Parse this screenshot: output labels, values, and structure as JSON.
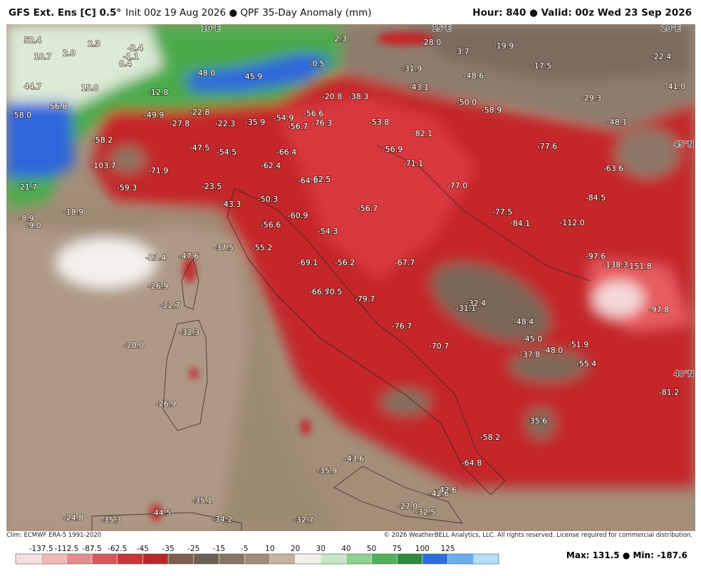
{
  "header": {
    "model": "GFS Ext.  Ens [C] 0.5°",
    "init": "Init 00z 19 Aug 2026 ● QPF 35-Day Anomaly (mm)",
    "valid": "Hour: 840 ● Valid: 00z Wed 23 Sep 2026"
  },
  "footer": {
    "climo": "Clim: ECMWF ERA-5 1991-2020",
    "copyright": "© 2026 WeatherBELL Analytics, LLC. All rights reserved. License required for commercial distribution."
  },
  "map": {
    "grid_labels": [
      "10°E",
      "15°E",
      "20°E",
      "45°N",
      "40°N"
    ],
    "labels": [
      "52.4",
      "18.7",
      "2.0",
      "2.3",
      "-2.4",
      "-1.1",
      "0.4",
      "48.0",
      "-0.5",
      "45.9",
      "2.3",
      "-28.0",
      "3.7",
      "-19.9",
      "-22.4",
      "44.7",
      "15.8",
      "56.8",
      "58.0",
      "-12.8",
      "-49.9",
      "-22.8",
      "-27.8",
      "-22.3",
      "-35.9",
      "-54.9",
      "-56.6",
      "-56.7",
      "-76.3",
      "-20.8",
      "-38.3",
      "-31.9",
      "-43.1",
      "-48.6",
      "-17.5",
      "-29.3",
      "-41.0",
      "-50.0",
      "-58.9",
      "-53.8",
      "-82.1",
      "-48.1",
      "-58.2",
      "-47.5",
      "-54.5",
      "-66.4",
      "-62.4",
      "-56.9",
      "-77.6",
      "-103.7",
      "-71.9",
      "-71.1",
      "-63.6",
      "-64.6",
      "-62.5",
      "-77.0",
      "21.7",
      "-59.3",
      "-23.5",
      "-43.3",
      "-50.3",
      "-84.5",
      "-56.7",
      "-8.9",
      "-18.9",
      "-9.0",
      "-56.6",
      "-60.9",
      "-77.5",
      "-84.1",
      "-112.0",
      "-54.3",
      "-37.5",
      "-55.2",
      "-47.6",
      "-23.4",
      "-97.6",
      "-138.3",
      "-151.8",
      "-69.1",
      "-56.2",
      "-67.7",
      "-26.9",
      "-66.5",
      "70.5",
      "-79.7",
      "-32.4",
      "-31.1",
      "-97.8",
      "-22.7",
      "-48.4",
      "-76.7",
      "-32.3",
      "-45.0",
      "-51.9",
      "-20.0",
      "-70.7",
      "-37.8",
      "-48.0",
      "-55.4",
      "-81.2",
      "-26.9",
      "-35.6",
      "-58.2",
      "-43.6",
      "-64.8",
      "-35.9",
      "-43.6",
      "-42.6",
      "-35.1",
      "-27.0",
      "-32.5",
      "-24.8",
      "-44.5",
      "-35.3",
      "-34.2",
      "-32.7"
    ]
  },
  "colorbar": {
    "ticks": [
      -137.5,
      -112.5,
      -87.5,
      -62.5,
      -45,
      -35,
      -25,
      -15,
      -5,
      10,
      20,
      30,
      40,
      50,
      75,
      100,
      125
    ],
    "colors": [
      "#f6dede",
      "#f0b8b8",
      "#e58c8c",
      "#d85858",
      "#c83636",
      "#b82a2a",
      "#7e5e4c",
      "#6e6054",
      "#857565",
      "#a08c78",
      "#c4b4a0",
      "#f2eee8",
      "#c8e6c8",
      "#8ed08e",
      "#4fb25a",
      "#2f8c3c",
      "#2b6ee0",
      "#6aaef0",
      "#b2e0f6"
    ]
  },
  "stats": {
    "max_label": "Max:",
    "max": 131.5,
    "min_label": "Min:",
    "min": -187.6
  }
}
